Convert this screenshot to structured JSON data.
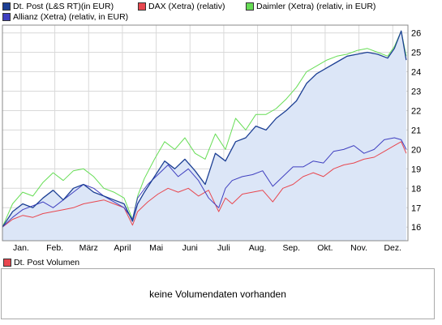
{
  "legend": [
    {
      "label": "Dt. Post (L&S RT)(in EUR)",
      "color": "#1c3f94"
    },
    {
      "label": "DAX (Xetra) (relativ)",
      "color": "#e8474f"
    },
    {
      "label": "Daimler (Xetra) (relativ, in EUR)",
      "color": "#66dd55"
    },
    {
      "label": "Allianz (Xetra) (relativ, in EUR)",
      "color": "#4040c0"
    }
  ],
  "volume": {
    "legend_label": "Dt. Post Volumen",
    "legend_color": "#e8474f",
    "message": "keine Volumendaten vorhanden"
  },
  "colors": {
    "area_fill": "#dce6f7",
    "grid": "#d9d9d9",
    "axis": "#888888"
  },
  "chart_data": {
    "type": "line",
    "xlabel": "",
    "ylabel": "",
    "ylim": [
      15.3,
      26.4
    ],
    "y_ticks": [
      16,
      17,
      18,
      19,
      20,
      21,
      22,
      23,
      24,
      25,
      26
    ],
    "y_axis_side": "right",
    "x_range": [
      0,
      12
    ],
    "x_ticks": [
      {
        "x": 0.55,
        "label": "Jan."
      },
      {
        "x": 1.55,
        "label": "Feb."
      },
      {
        "x": 2.55,
        "label": "März"
      },
      {
        "x": 3.55,
        "label": "April"
      },
      {
        "x": 4.55,
        "label": "Mai"
      },
      {
        "x": 5.55,
        "label": "Juni"
      },
      {
        "x": 6.55,
        "label": "Juli"
      },
      {
        "x": 7.55,
        "label": "Aug."
      },
      {
        "x": 8.55,
        "label": "Sep."
      },
      {
        "x": 9.55,
        "label": "Okt."
      },
      {
        "x": 10.55,
        "label": "Nov."
      },
      {
        "x": 11.55,
        "label": "Dez."
      }
    ],
    "grid": true,
    "legend_position": "top",
    "series": [
      {
        "name": "DAX (Xetra) (relativ)",
        "color": "#e8474f",
        "area": false,
        "x": [
          0,
          0.3,
          0.6,
          0.9,
          1.2,
          1.5,
          1.8,
          2.1,
          2.4,
          2.7,
          3.0,
          3.3,
          3.6,
          3.85,
          4.0,
          4.3,
          4.6,
          4.9,
          5.2,
          5.5,
          5.8,
          6.1,
          6.4,
          6.6,
          6.8,
          7.1,
          7.4,
          7.7,
          8.0,
          8.3,
          8.6,
          8.9,
          9.2,
          9.5,
          9.8,
          10.1,
          10.4,
          10.7,
          11.0,
          11.3,
          11.6,
          11.8,
          11.95
        ],
        "y": [
          16.0,
          16.4,
          16.6,
          16.5,
          16.7,
          16.8,
          16.9,
          17.0,
          17.2,
          17.3,
          17.4,
          17.2,
          17.0,
          16.1,
          16.8,
          17.3,
          17.7,
          18.0,
          17.8,
          18.0,
          17.6,
          17.9,
          16.8,
          17.5,
          17.2,
          17.7,
          17.8,
          17.9,
          17.3,
          18.0,
          18.2,
          18.6,
          18.8,
          18.6,
          19.0,
          19.2,
          19.3,
          19.5,
          19.6,
          19.9,
          20.2,
          20.4,
          19.8
        ]
      },
      {
        "name": "Daimler (Xetra) (relativ, in EUR)",
        "color": "#66dd55",
        "area": false,
        "x": [
          0,
          0.3,
          0.6,
          0.9,
          1.2,
          1.5,
          1.8,
          2.1,
          2.4,
          2.7,
          3.0,
          3.3,
          3.6,
          3.85,
          4.0,
          4.2,
          4.5,
          4.8,
          5.1,
          5.4,
          5.7,
          6.0,
          6.3,
          6.6,
          6.9,
          7.2,
          7.5,
          7.8,
          8.1,
          8.4,
          8.7,
          9.0,
          9.3,
          9.6,
          9.9,
          10.2,
          10.5,
          10.8,
          11.1,
          11.4,
          11.6,
          11.8,
          11.95
        ],
        "y": [
          16.0,
          17.2,
          17.8,
          17.6,
          18.3,
          18.8,
          18.4,
          18.9,
          19.0,
          18.6,
          18.0,
          17.8,
          17.5,
          16.4,
          17.6,
          18.5,
          19.5,
          20.4,
          20.0,
          20.6,
          19.8,
          19.5,
          20.8,
          20.0,
          21.6,
          21.0,
          21.8,
          21.8,
          22.1,
          22.6,
          23.2,
          24.0,
          24.3,
          24.6,
          24.8,
          24.9,
          25.1,
          25.2,
          25.0,
          24.8,
          25.3,
          26.1,
          24.8
        ]
      },
      {
        "name": "Allianz (Xetra) (relativ, in EUR)",
        "color": "#4040c0",
        "area": false,
        "x": [
          0,
          0.3,
          0.6,
          0.9,
          1.2,
          1.5,
          1.8,
          2.1,
          2.4,
          2.7,
          3.0,
          3.3,
          3.6,
          3.85,
          4.0,
          4.3,
          4.6,
          4.9,
          5.2,
          5.5,
          5.8,
          6.1,
          6.4,
          6.6,
          6.8,
          7.1,
          7.4,
          7.7,
          8.0,
          8.3,
          8.6,
          8.9,
          9.2,
          9.5,
          9.8,
          10.1,
          10.4,
          10.7,
          11.0,
          11.3,
          11.6,
          11.8,
          11.95
        ],
        "y": [
          16.0,
          16.5,
          16.9,
          17.1,
          17.3,
          17.0,
          17.4,
          17.8,
          18.2,
          18.0,
          17.6,
          17.3,
          17.0,
          16.4,
          17.5,
          18.2,
          18.7,
          19.2,
          18.6,
          19.0,
          18.4,
          17.5,
          17.0,
          18.0,
          18.4,
          18.6,
          18.7,
          18.9,
          18.1,
          18.6,
          19.1,
          19.1,
          19.4,
          19.3,
          19.9,
          20.0,
          20.2,
          19.8,
          20.0,
          20.5,
          20.6,
          20.5,
          20.0
        ]
      },
      {
        "name": "Dt. Post (L&S RT)(in EUR)",
        "color": "#1c3f94",
        "area": true,
        "x": [
          0,
          0.3,
          0.6,
          0.9,
          1.2,
          1.5,
          1.8,
          2.1,
          2.4,
          2.7,
          3.0,
          3.3,
          3.6,
          3.85,
          4.0,
          4.2,
          4.5,
          4.8,
          5.1,
          5.4,
          5.7,
          6.0,
          6.3,
          6.6,
          6.9,
          7.2,
          7.5,
          7.8,
          8.1,
          8.4,
          8.7,
          9.0,
          9.3,
          9.6,
          9.9,
          10.2,
          10.5,
          10.8,
          11.1,
          11.4,
          11.6,
          11.8,
          11.95
        ],
        "y": [
          16.0,
          16.8,
          17.2,
          17.0,
          17.5,
          17.9,
          17.4,
          18.0,
          18.2,
          17.8,
          17.6,
          17.4,
          17.2,
          16.3,
          17.2,
          17.8,
          18.6,
          19.4,
          19.0,
          19.5,
          18.9,
          18.2,
          19.8,
          19.4,
          20.4,
          20.6,
          21.2,
          21.0,
          21.6,
          22.0,
          22.5,
          23.4,
          23.9,
          24.2,
          24.5,
          24.8,
          24.9,
          25.0,
          24.9,
          24.7,
          25.2,
          26.1,
          24.6
        ]
      }
    ]
  }
}
